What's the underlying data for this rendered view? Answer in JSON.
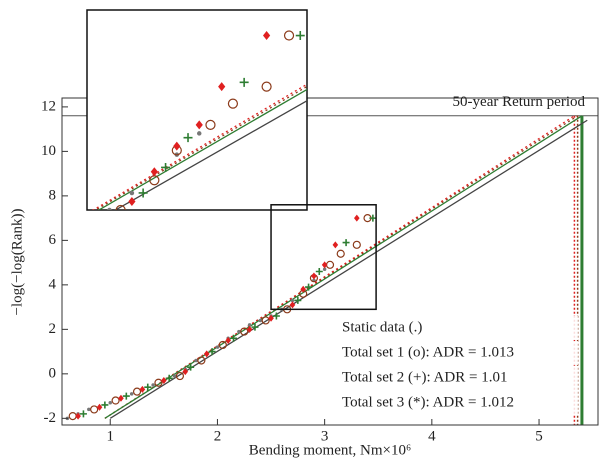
{
  "chart_data": {
    "type": "scatter",
    "x_label": "Bending moment, Nm×10⁶",
    "y_label": "−log(−log(Rank))",
    "xlim": [
      0.55,
      5.55
    ],
    "ylim": [
      -2.3,
      12.4
    ],
    "xticks": [
      1,
      2,
      3,
      4,
      5
    ],
    "yticks": [
      -2,
      0,
      2,
      4,
      6,
      8,
      10,
      12
    ],
    "series": [
      {
        "name": "Static data (.)",
        "color": "#777777",
        "marker": "dot",
        "x": [
          0.6,
          0.7,
          0.8,
          0.9,
          1.0,
          1.1,
          1.2,
          1.3,
          1.4,
          1.5,
          1.6,
          1.7,
          1.8,
          1.9,
          2.0,
          2.1,
          2.2,
          2.3,
          2.4,
          2.5,
          2.6,
          2.7,
          2.8,
          2.9,
          3.0
        ],
        "values": [
          -2,
          -1.8,
          -1.6,
          -1.5,
          -1.3,
          -1.1,
          -0.9,
          -0.7,
          -0.5,
          -0.3,
          -0.1,
          0.2,
          0.6,
          0.9,
          1.2,
          1.6,
          1.9,
          2.2,
          2.4,
          2.6,
          2.9,
          3.3,
          3.8,
          4.2,
          4.7
        ]
      },
      {
        "name": "Total set 1 (o): ADR = 1.013",
        "color": "#8b3a1a",
        "marker": "circle",
        "x": [
          0.65,
          0.85,
          1.05,
          1.25,
          1.45,
          1.65,
          1.85,
          2.05,
          2.25,
          2.45,
          2.65,
          2.8,
          2.9,
          3.05,
          3.15,
          3.3,
          3.4
        ],
        "values": [
          -1.9,
          -1.6,
          -1.2,
          -0.8,
          -0.4,
          -0.1,
          0.6,
          1.3,
          1.9,
          2.4,
          2.9,
          3.6,
          4.3,
          4.9,
          5.4,
          5.8,
          7.0
        ]
      },
      {
        "name": "Total set 2 (+): ADR = 1.01",
        "color": "#2e7d32",
        "marker": "plus",
        "x": [
          0.75,
          0.95,
          1.15,
          1.35,
          1.55,
          1.75,
          1.95,
          2.15,
          2.35,
          2.55,
          2.75,
          2.85,
          2.95,
          3.2,
          3.45
        ],
        "values": [
          -1.8,
          -1.4,
          -1.0,
          -0.6,
          -0.2,
          0.3,
          1.0,
          1.6,
          2.1,
          2.6,
          3.3,
          3.9,
          4.6,
          5.9,
          7.0
        ]
      },
      {
        "name": "Total set 3 (*): ADR = 1.012",
        "color": "#e02020",
        "marker": "diamond",
        "x": [
          0.7,
          0.9,
          1.1,
          1.3,
          1.5,
          1.7,
          1.9,
          2.1,
          2.3,
          2.5,
          2.7,
          2.8,
          2.9,
          3.0,
          3.1,
          3.3
        ],
        "values": [
          -1.9,
          -1.5,
          -1.1,
          -0.7,
          -0.3,
          0.1,
          0.9,
          1.5,
          2.0,
          2.5,
          3.1,
          3.8,
          4.4,
          4.9,
          5.8,
          7.0
        ]
      }
    ],
    "fit_lines": [
      {
        "color": "#444444",
        "dashed": false,
        "x": [
          1.0,
          5.45
        ],
        "values": [
          -2,
          11.4
        ]
      },
      {
        "color": "#8b3a1a",
        "dashed": true,
        "x": [
          0.95,
          5.36
        ],
        "values": [
          -2,
          11.6
        ]
      },
      {
        "color": "#e02020",
        "dashed": true,
        "x": [
          0.95,
          5.33
        ],
        "values": [
          -2,
          11.6
        ]
      },
      {
        "color": "#2e7d32",
        "dashed": false,
        "x": [
          0.95,
          5.4
        ],
        "values": [
          -2,
          11.6
        ]
      }
    ],
    "return_level": {
      "label": "50-year Return period",
      "y": 11.6
    },
    "vlines": [
      {
        "x": 5.33,
        "color": "#e02020",
        "dashed": true
      },
      {
        "x": 5.36,
        "color": "#8b3a1a",
        "dashed": true
      },
      {
        "x": 5.4,
        "color": "#2e7d32",
        "dashed": false
      }
    ],
    "inset": {
      "xlim": [
        2.5,
        3.48
      ],
      "ylim": [
        2.9,
        7.6
      ]
    }
  }
}
